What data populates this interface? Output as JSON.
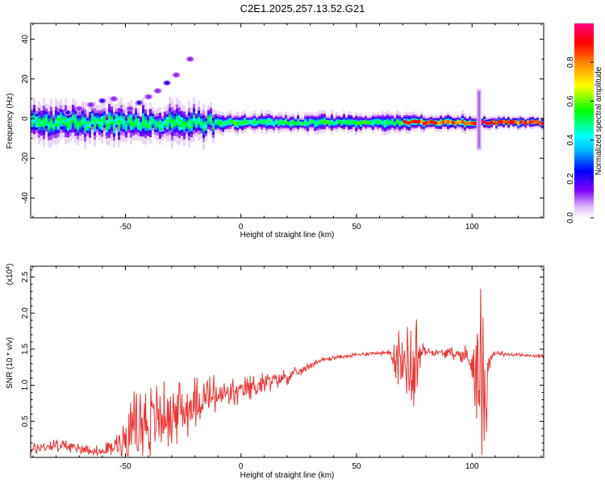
{
  "title": "C2E1.2025.257.13.52.G21",
  "chart_data": [
    {
      "type": "heatmap",
      "title": "C2E1.2025.257.13.52.G21",
      "xlabel": "Height of straight line (km)",
      "ylabel": "Frequency (Hz)",
      "xlim": [
        -91,
        131
      ],
      "ylim": [
        -50,
        48
      ],
      "xticks": [
        -50,
        0,
        50,
        100
      ],
      "yticks": [
        -40,
        -20,
        0,
        20,
        40
      ],
      "xtick_labels": [
        "-50",
        "0",
        "50",
        "100"
      ],
      "ytick_labels": [
        "-40",
        "-20",
        "0",
        "20",
        "40"
      ],
      "colormap": [
        "#ffffff",
        "#d9b3f5",
        "#8000ff",
        "#0000ff",
        "#00ffff",
        "#00ff00",
        "#ffff00",
        "#ff8000",
        "#ff0000",
        "#ff0080"
      ],
      "colorbar": {
        "label": "Normalized spectral amplitude",
        "range": [
          0,
          1
        ],
        "ticks": [
          0.0,
          0.2,
          0.4,
          0.6,
          0.8
        ],
        "tick_labels": [
          "0.0",
          "0.2",
          "0.4",
          "0.6",
          "0.8"
        ]
      },
      "main_band_frequency_hz": -2,
      "features": [
        {
          "x_range": [
            -91,
            -12
          ],
          "center_hz": -2,
          "spread_hz": 6,
          "peak": 0.55
        },
        {
          "x_range": [
            -12,
            70
          ],
          "center_hz": -2,
          "spread_hz": 3,
          "peak": 0.6
        },
        {
          "x_range": [
            70,
            100
          ],
          "center_hz": -2,
          "spread_hz": 3,
          "peak": 0.92
        },
        {
          "x_range": [
            108,
            131
          ],
          "center_hz": -2,
          "spread_hz": 2,
          "peak": 0.97
        }
      ],
      "harmonic_points": [
        {
          "x": -75,
          "y": 3
        },
        {
          "x": -70,
          "y": 5
        },
        {
          "x": -65,
          "y": 7
        },
        {
          "x": -60,
          "y": 9
        },
        {
          "x": -55,
          "y": 10
        },
        {
          "x": -48,
          "y": 5
        },
        {
          "x": -44,
          "y": 8
        },
        {
          "x": -40,
          "y": 11
        },
        {
          "x": -36,
          "y": 14
        },
        {
          "x": -32,
          "y": 18
        },
        {
          "x": -28,
          "y": 22
        },
        {
          "x": -22,
          "y": 30
        }
      ],
      "burst": {
        "x": 103,
        "y_range": [
          -16,
          15
        ]
      }
    },
    {
      "type": "line",
      "xlabel": "Height of straight line (km)",
      "ylabel": "SNR (10 * v/v)",
      "y_multiplier_label": "(x10",
      "y_multiplier_exponent": "4",
      "xlim": [
        -91,
        131
      ],
      "ylim": [
        0.0,
        2.65
      ],
      "xticks": [
        -50,
        0,
        50,
        100
      ],
      "yticks": [
        0.5,
        1.0,
        1.5,
        2.0,
        2.5
      ],
      "xtick_labels": [
        "-50",
        "0",
        "50",
        "100"
      ],
      "ytick_labels": [
        "0.5",
        "1.0",
        "1.5",
        "2.0",
        "2.5"
      ],
      "series": [
        {
          "color": "#ee3333",
          "x": [
            -91,
            -85,
            -80,
            -75,
            -70,
            -65,
            -60,
            -55,
            -50,
            -45,
            -40,
            -35,
            -30,
            -25,
            -20,
            -15,
            -10,
            -5,
            0,
            5,
            10,
            15,
            20,
            25,
            30,
            35,
            40,
            45,
            50,
            55,
            60,
            65,
            68,
            70,
            72,
            74,
            76,
            78,
            80,
            85,
            90,
            95,
            100,
            102,
            104,
            106,
            108,
            110,
            115,
            120,
            125,
            131
          ],
          "y": [
            0.1,
            0.15,
            0.16,
            0.15,
            0.12,
            0.1,
            0.08,
            0.15,
            0.3,
            0.45,
            0.5,
            0.55,
            0.62,
            0.65,
            0.75,
            0.82,
            0.85,
            0.88,
            0.92,
            0.98,
            1.02,
            1.08,
            1.12,
            1.18,
            1.28,
            1.35,
            1.38,
            1.4,
            1.42,
            1.44,
            1.45,
            1.44,
            1.4,
            1.3,
            1.35,
            1.2,
            1.4,
            1.45,
            1.47,
            1.45,
            1.44,
            1.43,
            1.35,
            1.2,
            1.1,
            0.9,
            1.4,
            1.45,
            1.43,
            1.42,
            1.41,
            1.4
          ],
          "noise_amplitude": [
            0.08,
            0.1,
            0.1,
            0.1,
            0.1,
            0.08,
            0.08,
            0.15,
            0.4,
            0.55,
            0.55,
            0.5,
            0.5,
            0.45,
            0.4,
            0.35,
            0.3,
            0.25,
            0.2,
            0.18,
            0.16,
            0.14,
            0.12,
            0.08,
            0.05,
            0.04,
            0.03,
            0.03,
            0.03,
            0.03,
            0.03,
            0.05,
            0.5,
            0.6,
            0.5,
            0.7,
            0.6,
            0.2,
            0.05,
            0.05,
            0.08,
            0.1,
            0.3,
            0.9,
            1.3,
            0.7,
            0.15,
            0.04,
            0.03,
            0.03,
            0.03,
            0.03
          ]
        }
      ]
    }
  ]
}
